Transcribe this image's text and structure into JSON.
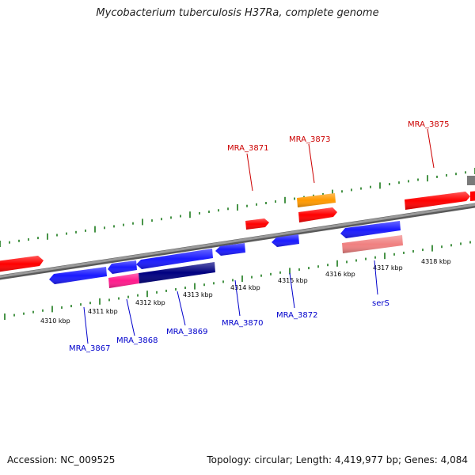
{
  "title": "Mycobacterium tuberculosis H37Ra, complete genome",
  "footer": {
    "accession": "Accession: NC_009525",
    "summary": "Topology: circular; Length: 4,419,977 bp; Genes: 4,084"
  },
  "colors": {
    "forward_gene": "#ff0000",
    "reverse_gene": "#1a1aff",
    "reverse_dark": "#000080",
    "rna": "#ff1a8c",
    "orange_feature": "#ff9900",
    "pseudo": "#f08080",
    "backbone": "#8c8c8c",
    "ticks": "#1a7a1a",
    "forward_label": "#cc0000",
    "reverse_label": "#0000cc"
  },
  "scale_labels": [
    "4310 kbp",
    "4311 kbp",
    "4312 kbp",
    "4313 kbp",
    "4314 kbp",
    "4315 kbp",
    "4316 kbp",
    "4317 kbp",
    "4318 kbp"
  ],
  "forward_labels": [
    "MRA_3871",
    "MRA_3873",
    "MRA_3875"
  ],
  "reverse_labels": [
    "MRA_3867",
    "MRA_3868",
    "MRA_3869",
    "MRA_3870",
    "MRA_3872",
    "serS"
  ]
}
